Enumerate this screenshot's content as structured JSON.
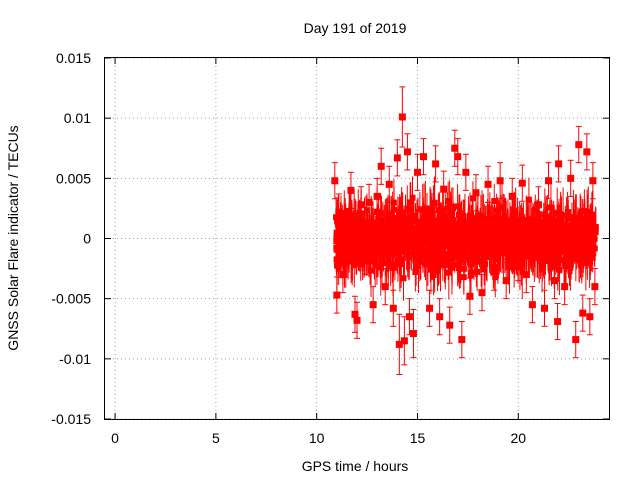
{
  "chart_data": {
    "type": "scatter",
    "title": "Day 191 of 2019",
    "xlabel": "GPS time / hours",
    "ylabel": "GNSS Solar Flare indicator / TECUs",
    "xlim": [
      -0.5,
      24.5
    ],
    "ylim": [
      -0.015,
      0.015
    ],
    "xticks": [
      0,
      5,
      10,
      15,
      20
    ],
    "xtick_labels": [
      "0",
      "5",
      "10",
      "15",
      "20"
    ],
    "yticks": [
      0.015,
      0.01,
      0.005,
      0,
      -0.005,
      -0.01,
      -0.015
    ],
    "ytick_labels": [
      "0.015",
      "0.01",
      "0.005",
      "0",
      "-0.005",
      "-0.01",
      "-0.015"
    ],
    "grid": true,
    "marker": "square",
    "error_bars": true,
    "color": "#ff0000",
    "series": [
      {
        "points": [
          {
            "x": 10.9,
            "y": 0.0048,
            "err": 0.0015
          },
          {
            "x": 11.0,
            "y": -0.0047,
            "err": 0.0015
          },
          {
            "x": 11.1,
            "y": 0.0022,
            "err": 0.0015
          },
          {
            "x": 11.3,
            "y": -0.003,
            "err": 0.0015
          },
          {
            "x": 11.5,
            "y": 0.001,
            "err": 0.0015
          },
          {
            "x": 11.7,
            "y": 0.004,
            "err": 0.0015
          },
          {
            "x": 11.9,
            "y": -0.0063,
            "err": 0.0015
          },
          {
            "x": 12.0,
            "y": -0.0068,
            "err": 0.0015
          },
          {
            "x": 12.2,
            "y": 0.0028,
            "err": 0.0015
          },
          {
            "x": 12.4,
            "y": -0.0015,
            "err": 0.0015
          },
          {
            "x": 12.6,
            "y": 0.003,
            "err": 0.0015
          },
          {
            "x": 12.8,
            "y": -0.0055,
            "err": 0.0015
          },
          {
            "x": 13.0,
            "y": 0.0035,
            "err": 0.0015
          },
          {
            "x": 13.2,
            "y": 0.006,
            "err": 0.0015
          },
          {
            "x": 13.4,
            "y": -0.004,
            "err": 0.0015
          },
          {
            "x": 13.6,
            "y": 0.0045,
            "err": 0.0015
          },
          {
            "x": 13.8,
            "y": -0.0058,
            "err": 0.0015
          },
          {
            "x": 14.0,
            "y": 0.0067,
            "err": 0.0015
          },
          {
            "x": 14.1,
            "y": -0.0088,
            "err": 0.0025
          },
          {
            "x": 14.25,
            "y": 0.0101,
            "err": 0.0025
          },
          {
            "x": 14.35,
            "y": -0.0085,
            "err": 0.002
          },
          {
            "x": 14.5,
            "y": 0.0072,
            "err": 0.0015
          },
          {
            "x": 14.6,
            "y": -0.0065,
            "err": 0.0015
          },
          {
            "x": 14.8,
            "y": -0.0079,
            "err": 0.002
          },
          {
            "x": 15.0,
            "y": 0.0055,
            "err": 0.0015
          },
          {
            "x": 15.3,
            "y": 0.0068,
            "err": 0.0015
          },
          {
            "x": 15.6,
            "y": -0.0058,
            "err": 0.0015
          },
          {
            "x": 15.9,
            "y": 0.0062,
            "err": 0.0015
          },
          {
            "x": 16.1,
            "y": -0.0065,
            "err": 0.0015
          },
          {
            "x": 16.3,
            "y": 0.0041,
            "err": 0.0015
          },
          {
            "x": 16.6,
            "y": -0.0072,
            "err": 0.0015
          },
          {
            "x": 16.85,
            "y": 0.0075,
            "err": 0.0015
          },
          {
            "x": 17.0,
            "y": 0.0068,
            "err": 0.0015
          },
          {
            "x": 17.2,
            "y": -0.0084,
            "err": 0.0015
          },
          {
            "x": 17.4,
            "y": 0.0055,
            "err": 0.0015
          },
          {
            "x": 17.6,
            "y": -0.0048,
            "err": 0.0015
          },
          {
            "x": 17.9,
            "y": 0.0038,
            "err": 0.0015
          },
          {
            "x": 18.2,
            "y": -0.0045,
            "err": 0.0015
          },
          {
            "x": 18.5,
            "y": 0.0045,
            "err": 0.0015
          },
          {
            "x": 18.8,
            "y": -0.0028,
            "err": 0.0015
          },
          {
            "x": 19.1,
            "y": 0.0048,
            "err": 0.0015
          },
          {
            "x": 19.4,
            "y": -0.0035,
            "err": 0.0015
          },
          {
            "x": 19.7,
            "y": 0.0035,
            "err": 0.0015
          },
          {
            "x": 20.0,
            "y": -0.002,
            "err": 0.0015
          },
          {
            "x": 20.2,
            "y": 0.0046,
            "err": 0.0015
          },
          {
            "x": 20.4,
            "y": -0.003,
            "err": 0.0015
          },
          {
            "x": 20.7,
            "y": -0.0055,
            "err": 0.0015
          },
          {
            "x": 21.0,
            "y": 0.0028,
            "err": 0.0015
          },
          {
            "x": 21.3,
            "y": -0.0058,
            "err": 0.0015
          },
          {
            "x": 21.5,
            "y": 0.0048,
            "err": 0.0015
          },
          {
            "x": 21.8,
            "y": -0.0035,
            "err": 0.0015
          },
          {
            "x": 21.95,
            "y": -0.0069,
            "err": 0.0015
          },
          {
            "x": 22.0,
            "y": 0.0062,
            "err": 0.0015
          },
          {
            "x": 22.3,
            "y": -0.004,
            "err": 0.0015
          },
          {
            "x": 22.6,
            "y": 0.005,
            "err": 0.0015
          },
          {
            "x": 22.85,
            "y": -0.0084,
            "err": 0.0015
          },
          {
            "x": 23.0,
            "y": 0.0078,
            "err": 0.0015
          },
          {
            "x": 23.2,
            "y": -0.0062,
            "err": 0.0015
          },
          {
            "x": 23.4,
            "y": 0.0072,
            "err": 0.0015
          },
          {
            "x": 23.55,
            "y": -0.0065,
            "err": 0.0015
          },
          {
            "x": 23.7,
            "y": 0.0048,
            "err": 0.0015
          },
          {
            "x": 23.8,
            "y": -0.004,
            "err": 0.0015
          }
        ]
      }
    ]
  }
}
